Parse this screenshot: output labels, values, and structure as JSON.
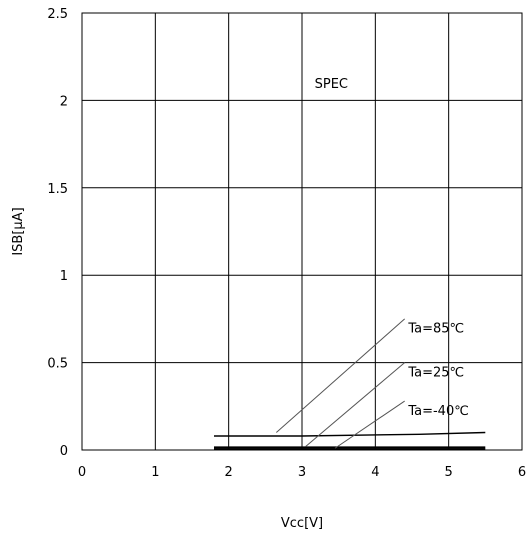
{
  "chart_data": {
    "type": "line",
    "title": "",
    "xlabel": "Vcc[V]",
    "ylabel": "ISB[μA]",
    "xlim": [
      0,
      6
    ],
    "ylim": [
      0,
      2.5
    ],
    "x_ticks": [
      {
        "value": 0,
        "label": "0"
      },
      {
        "value": 1,
        "label": "1"
      },
      {
        "value": 2,
        "label": "2"
      },
      {
        "value": 3,
        "label": "3"
      },
      {
        "value": 4,
        "label": "4"
      },
      {
        "value": 5,
        "label": "5"
      },
      {
        "value": 6,
        "label": "6"
      }
    ],
    "y_ticks": [
      {
        "value": 0,
        "label": "0"
      },
      {
        "value": 0.5,
        "label": "0.5"
      },
      {
        "value": 1,
        "label": "1"
      },
      {
        "value": 1.5,
        "label": "1.5"
      },
      {
        "value": 2,
        "label": "2"
      },
      {
        "value": 2.5,
        "label": "2.5"
      }
    ],
    "grid": true,
    "series": [
      {
        "name": "Ta=85℃",
        "color": "#000000",
        "x": [
          1.8,
          3.0,
          4.6,
          5.5
        ],
        "y": [
          0.08,
          0.08,
          0.09,
          0.1
        ]
      },
      {
        "name": "Ta=25℃",
        "color": "#000000",
        "x": [
          1.8,
          5.5
        ],
        "y": [
          0.015,
          0.015
        ]
      },
      {
        "name": "Ta=-40℃",
        "color": "#000000",
        "x": [
          1.8,
          5.5
        ],
        "y": [
          0.005,
          0.005
        ]
      }
    ],
    "annotations": [
      {
        "id": "spec",
        "text": "SPEC",
        "x": 3.4,
        "y": 2.1
      },
      {
        "id": "ta85",
        "text": "Ta=85℃",
        "x": 4.45,
        "y": 0.7,
        "line_from": [
          2.65,
          0.1
        ],
        "line_to": [
          4.4,
          0.75
        ]
      },
      {
        "id": "ta25",
        "text": "Ta=25℃",
        "x": 4.45,
        "y": 0.45,
        "line_from": [
          3.05,
          0.02
        ],
        "line_to": [
          4.4,
          0.5
        ]
      },
      {
        "id": "ta_40",
        "text": "Ta=-40℃",
        "x": 4.45,
        "y": 0.23,
        "line_from": [
          3.45,
          0.01
        ],
        "line_to": [
          4.4,
          0.28
        ]
      }
    ]
  }
}
